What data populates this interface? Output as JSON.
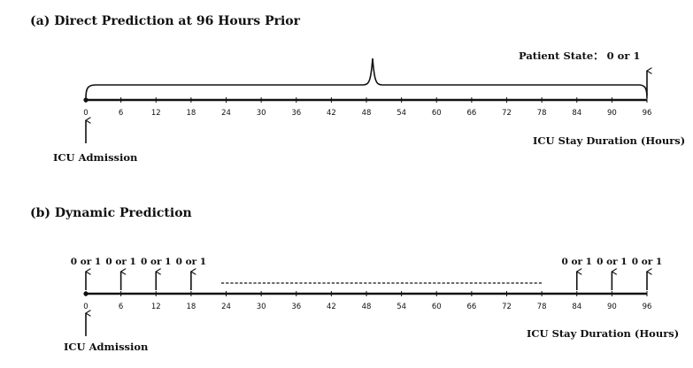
{
  "panel_a": {
    "title": "(a)  Direct Prediction at 96 Hours Prior",
    "patient_state": "Patient State： 0 or 1",
    "admission_label": "ICU Admission",
    "duration_label": "ICU Stay Duration (Hours)"
  },
  "panel_b": {
    "title": "(b)  Dynamic Prediction",
    "admission_label": "ICU Admission",
    "duration_label": "ICU Stay Duration (Hours)",
    "outcome_label": "0 or 1",
    "prediction_hours": [
      0,
      6,
      12,
      18,
      84,
      90,
      96
    ]
  },
  "axis": {
    "ticks": [
      "0",
      "6",
      "12",
      "18",
      "24",
      "30",
      "36",
      "42",
      "48",
      "54",
      "60",
      "66",
      "72",
      "78",
      "84",
      "90",
      "96"
    ],
    "unit": "Hours"
  },
  "colors": {
    "ink": "#111111"
  }
}
